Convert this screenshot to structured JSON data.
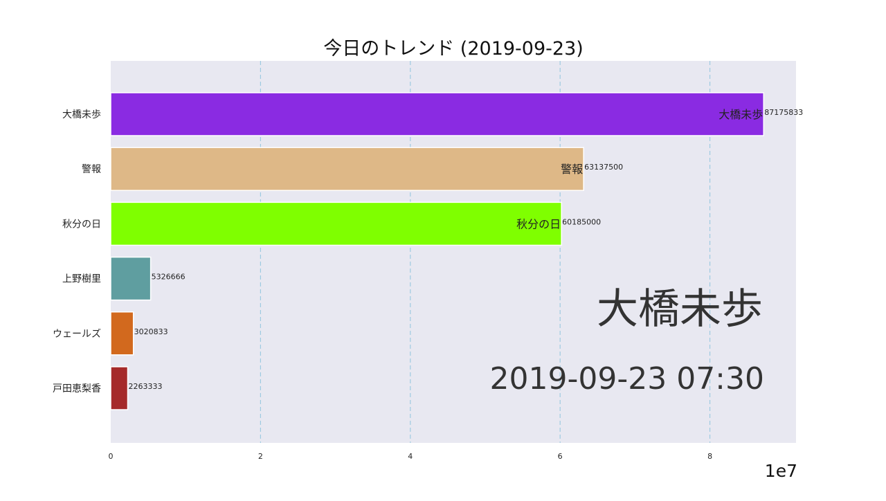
{
  "chart_data": {
    "type": "bar",
    "orientation": "horizontal",
    "title": "今日のトレンド (2019-09-23)",
    "categories": [
      "大橋未歩",
      "警報",
      "秋分の日",
      "上野樹里",
      "ウェールズ",
      "戸田恵梨香"
    ],
    "values": [
      87175833,
      63137500,
      60185000,
      5326666,
      3020833,
      2263333
    ],
    "value_labels": [
      "87175833",
      "63137500",
      "60185000",
      "5326666",
      "3020833",
      "2263333"
    ],
    "bar_name_labels": [
      "大橋未歩",
      "警報",
      "秋分の日",
      "",
      "",
      ""
    ],
    "colors": [
      "#8a2be2",
      "#deb887",
      "#7fff00",
      "#5f9ea0",
      "#d2691e",
      "#a52a2a"
    ],
    "xlim": [
      0,
      91500000
    ],
    "x_ticks": [
      0,
      20000000,
      40000000,
      60000000,
      80000000
    ],
    "x_tick_labels": [
      "0",
      "2",
      "4",
      "6",
      "8"
    ],
    "offset_label": "1e7",
    "grid": "vertical-dashed",
    "plot_background": "#e8e8f1",
    "grid_color": "#9ecae1",
    "annotations": {
      "leader": "大橋未歩",
      "timestamp": "2019-09-23 07:30"
    }
  }
}
